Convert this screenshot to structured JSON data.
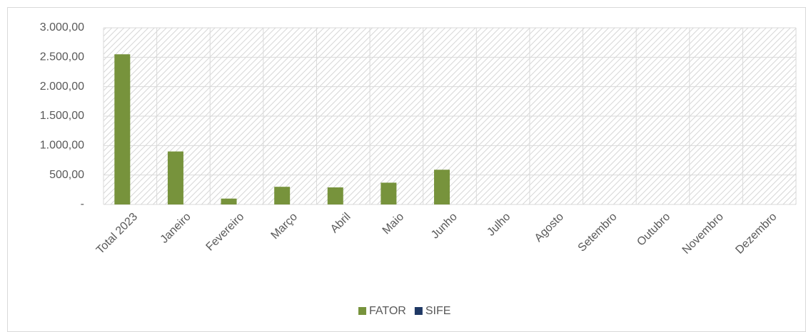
{
  "chart_data": {
    "type": "bar",
    "categories": [
      "Total 2023",
      "Janeiro",
      "Fevereiro",
      "Março",
      "Abril",
      "Maio",
      "Junho",
      "Julho",
      "Agosto",
      "Setembro",
      "Outubro",
      "Novembro",
      "Dezembro"
    ],
    "series": [
      {
        "name": "FATOR",
        "color": "#77933c",
        "values": [
          2550,
          900,
          100,
          300,
          290,
          370,
          590,
          0,
          0,
          0,
          0,
          0,
          0
        ]
      },
      {
        "name": "SIFE",
        "color": "#1f3864",
        "values": [
          0,
          0,
          0,
          0,
          0,
          0,
          0,
          0,
          0,
          0,
          0,
          0,
          0
        ]
      }
    ],
    "ylim": [
      0,
      3000
    ],
    "yticks": [
      {
        "value": 0,
        "label": "-"
      },
      {
        "value": 500,
        "label": "500,00"
      },
      {
        "value": 1000,
        "label": "1.000,00"
      },
      {
        "value": 1500,
        "label": "1.500,00"
      },
      {
        "value": 2000,
        "label": "2.000,00"
      },
      {
        "value": 2500,
        "label": "2.500,00"
      },
      {
        "value": 3000,
        "label": "3.000,00"
      }
    ],
    "grid": true,
    "legend": "bottom"
  }
}
